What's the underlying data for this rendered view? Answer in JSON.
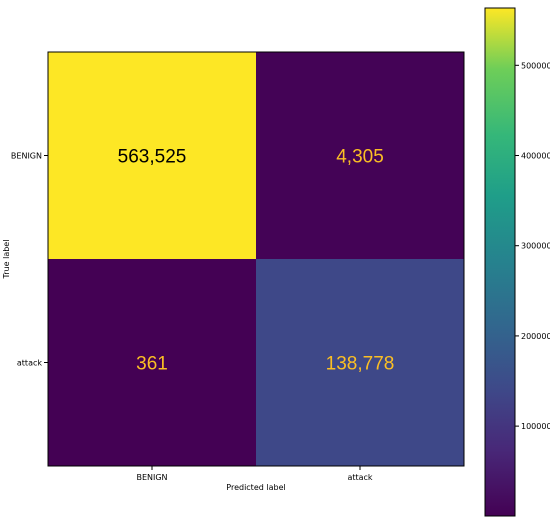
{
  "chart_data": {
    "type": "heatmap",
    "title": "",
    "xlabel": "Predicted label",
    "ylabel": "True label",
    "x_categories": [
      "BENIGN",
      "attack"
    ],
    "y_categories": [
      "BENIGN",
      "attack"
    ],
    "values": [
      [
        563525,
        4305
      ],
      [
        361,
        138778
      ]
    ],
    "cell_labels": [
      [
        "563,525",
        "4,305"
      ],
      [
        "361",
        "138,778"
      ]
    ],
    "colormap": "viridis",
    "colorbar": {
      "range": [
        361,
        563525
      ],
      "ticks": [
        100000,
        200000,
        300000,
        400000,
        500000
      ],
      "tick_labels": [
        "100000",
        "200000",
        "300000",
        "400000",
        "500000"
      ]
    },
    "text_colors": {
      "on_dark": "#fbbf24",
      "on_light": "#000000"
    }
  }
}
